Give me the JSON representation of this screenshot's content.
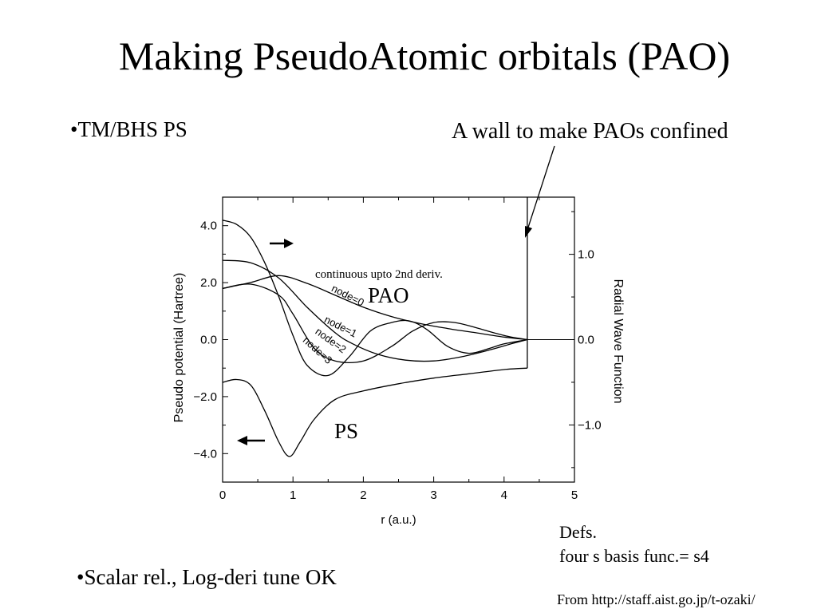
{
  "slide": {
    "title": "Making PseudoAtomic orbitals (PAO)",
    "bullet_1": "•TM/BHS PS",
    "bullet_2": "•Scalar rel., Log-deri tune OK",
    "wall_label": "A wall to make PAOs confined",
    "defs_line_1": "Defs.",
    "defs_line_2": "four s basis func.= s4",
    "source": "From http://staff.aist.go.jp/t-ozaki/"
  },
  "chart_data": {
    "type": "line",
    "xlabel": "r (a.u.)",
    "ylabel_left": "Pseudo potential (Hartree)",
    "ylabel_right": "Radial Wave Function",
    "xlim": [
      0,
      5
    ],
    "ylim_left": [
      -5,
      5
    ],
    "ylim_right": [
      -1.67,
      1.67
    ],
    "x_ticks": [
      "0",
      "1",
      "2",
      "3",
      "4",
      "5"
    ],
    "y_ticks_left": [
      "4.0",
      "2.0",
      "0.0",
      "−2.0",
      "−4.0"
    ],
    "y_ticks_right": [
      "1.0",
      "0.0",
      "−1.0"
    ],
    "wall_r": 4.33,
    "annotations": {
      "continuity": "continuous upto 2nd deriv.",
      "pao": "PAO",
      "ps": "PS"
    },
    "grid": false,
    "series": [
      {
        "name": "node=0",
        "axis": "right",
        "x": [
          0,
          0.4,
          0.8,
          1.2,
          1.6,
          2.0,
          2.4,
          2.8,
          3.2,
          3.6,
          4.0,
          4.33
        ],
        "y": [
          0.6,
          0.67,
          0.75,
          0.66,
          0.52,
          0.38,
          0.27,
          0.19,
          0.13,
          0.08,
          0.03,
          0.0
        ]
      },
      {
        "name": "node=1",
        "axis": "right",
        "x": [
          0,
          0.4,
          0.8,
          1.2,
          1.6,
          1.85,
          2.2,
          2.6,
          3.0,
          3.4,
          3.8,
          4.1,
          4.33
        ],
        "y": [
          0.93,
          0.9,
          0.72,
          0.38,
          0.08,
          -0.05,
          -0.17,
          -0.24,
          -0.25,
          -0.2,
          -0.12,
          -0.05,
          0.0
        ]
      },
      {
        "name": "node=2",
        "axis": "right",
        "x": [
          0,
          0.4,
          0.8,
          1.0,
          1.3,
          1.6,
          2.0,
          2.4,
          2.7,
          3.0,
          3.3,
          3.6,
          3.9,
          4.1,
          4.33
        ],
        "y": [
          0.6,
          0.65,
          0.52,
          0.3,
          -0.1,
          -0.25,
          -0.25,
          -0.08,
          0.1,
          0.2,
          0.2,
          0.14,
          0.07,
          0.03,
          0.0
        ]
      },
      {
        "name": "node=3",
        "axis": "right",
        "x": [
          0,
          0.2,
          0.4,
          0.6,
          0.8,
          1.0,
          1.2,
          1.5,
          1.8,
          2.1,
          2.4,
          2.65,
          2.9,
          3.2,
          3.5,
          3.8,
          4.0,
          4.33
        ],
        "y": [
          1.4,
          1.35,
          1.2,
          0.9,
          0.5,
          0.05,
          -0.3,
          -0.42,
          -0.2,
          0.1,
          0.2,
          0.22,
          0.12,
          -0.08,
          -0.16,
          -0.1,
          -0.05,
          0.0
        ]
      },
      {
        "name": "PS",
        "axis": "left",
        "x": [
          0,
          0.2,
          0.4,
          0.6,
          0.8,
          0.95,
          1.1,
          1.3,
          1.6,
          2.0,
          2.5,
          3.0,
          3.5,
          4.0,
          4.33
        ],
        "y": [
          -1.5,
          -1.4,
          -1.6,
          -2.5,
          -3.6,
          -4.1,
          -3.6,
          -2.8,
          -2.1,
          -1.8,
          -1.55,
          -1.35,
          -1.2,
          -1.05,
          -1.0
        ]
      }
    ]
  }
}
